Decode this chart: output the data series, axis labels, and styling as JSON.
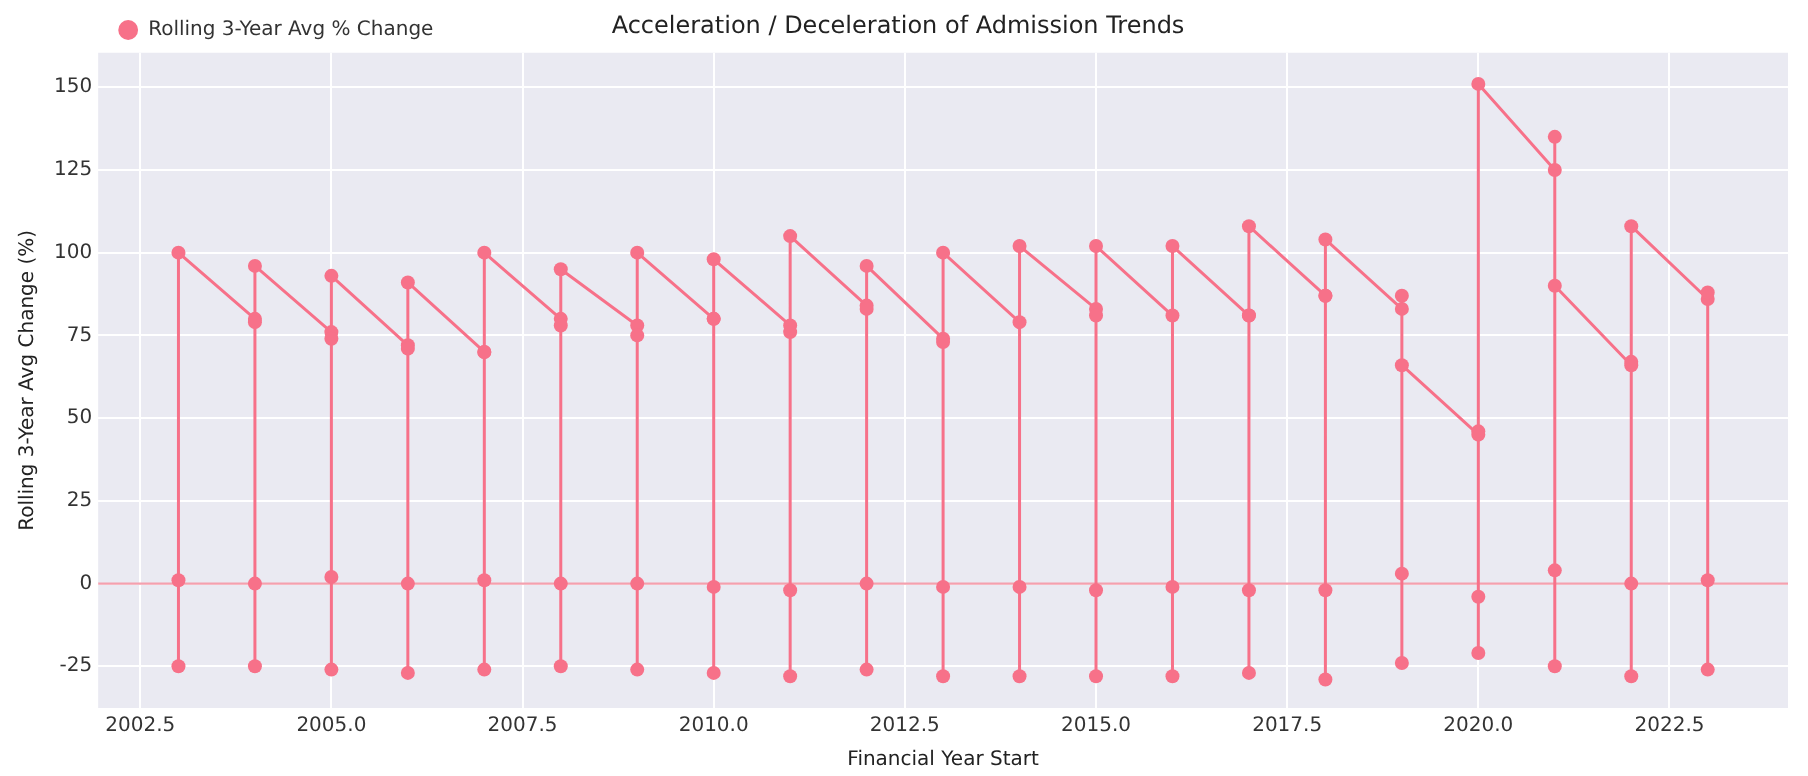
{
  "chart_data": {
    "type": "line",
    "title": "Acceleration / Deceleration of Admission Trends",
    "xlabel": "Financial Year Start",
    "ylabel": "Rolling 3-Year Avg Change (%)",
    "series": [
      {
        "name": "Rolling 3-Year Avg % Change",
        "color": "#f77189",
        "x": [
          2003,
          2003,
          2003,
          2004,
          2004,
          2004,
          2004,
          2004,
          2005,
          2005,
          2005,
          2005,
          2005,
          2006,
          2006,
          2006,
          2006,
          2006,
          2007,
          2007,
          2007,
          2007,
          2007,
          2008,
          2008,
          2008,
          2008,
          2008,
          2009,
          2009,
          2009,
          2009,
          2009,
          2010,
          2010,
          2010,
          2010,
          2010,
          2011,
          2011,
          2011,
          2011,
          2011,
          2012,
          2012,
          2012,
          2012,
          2012,
          2013,
          2013,
          2013,
          2013,
          2013,
          2014,
          2014,
          2014,
          2014,
          2015,
          2015,
          2015,
          2015,
          2015,
          2016,
          2016,
          2016,
          2016,
          2017,
          2017,
          2017,
          2017,
          2017,
          2018,
          2018,
          2018,
          2018,
          2018,
          2019,
          2019,
          2019,
          2019,
          2019,
          2020,
          2020,
          2020,
          2020,
          2020,
          2021,
          2021,
          2021,
          2021,
          2021,
          2022,
          2022,
          2022,
          2022,
          2022,
          2023,
          2023,
          2023,
          2023
        ],
        "values": [
          -25,
          1,
          100,
          80,
          79,
          -25,
          0,
          96,
          76,
          74,
          -26,
          2,
          93,
          72,
          71,
          -27,
          0,
          91,
          70,
          70,
          -26,
          1,
          100,
          80,
          78,
          -25,
          0,
          95,
          78,
          75,
          -26,
          0,
          100,
          80,
          80,
          -27,
          -1,
          98,
          78,
          76,
          -28,
          -2,
          105,
          84,
          83,
          -26,
          0,
          96,
          74,
          73,
          -28,
          -1,
          100,
          79,
          -28,
          -1,
          102,
          83,
          81,
          -28,
          -2,
          102,
          81,
          -28,
          -1,
          102,
          81,
          81,
          -27,
          -2,
          108,
          87,
          87,
          -29,
          -2,
          104,
          83,
          87,
          -24,
          3,
          66,
          45,
          46,
          -21,
          -4,
          151,
          125,
          135,
          -25,
          4,
          90,
          66,
          67,
          -28,
          0,
          108,
          86,
          88,
          -26,
          1
        ]
      }
    ],
    "xlim": [
      2001.95,
      2024.05
    ],
    "ylim": [
      -37.6,
      160.4
    ],
    "xticks": [
      {
        "value": 2002.5,
        "label": "2002.5"
      },
      {
        "value": 2005,
        "label": "2005.0"
      },
      {
        "value": 2007.5,
        "label": "2007.5"
      },
      {
        "value": 2010,
        "label": "2010.0"
      },
      {
        "value": 2012.5,
        "label": "2012.5"
      },
      {
        "value": 2015,
        "label": "2015.0"
      },
      {
        "value": 2017.5,
        "label": "2017.5"
      },
      {
        "value": 2020,
        "label": "2020.0"
      },
      {
        "value": 2022.5,
        "label": "2022.5"
      }
    ],
    "yticks": [
      -25,
      0,
      25,
      50,
      75,
      100,
      125,
      150
    ],
    "ref_lines": [
      {
        "axis": "y",
        "value": 0,
        "color": "#f4a0ae"
      }
    ],
    "grid": true,
    "legend": "top left",
    "marker": "circle",
    "line_style": "solid"
  }
}
